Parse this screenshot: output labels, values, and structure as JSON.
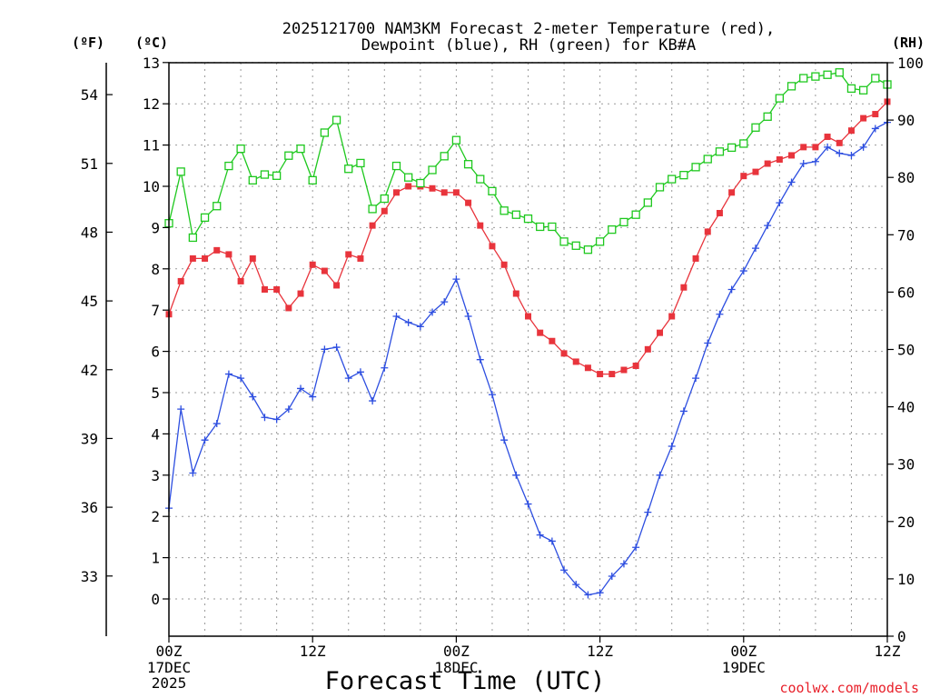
{
  "chart_data": {
    "type": "line",
    "title_line1": "2025121700 NAM3KM Forecast 2-meter Temperature (red),",
    "title_line2": "Dewpoint (blue), RH (green) for KB#A",
    "xlabel": "Forecast Time (UTC)",
    "credit": "coolwx.com/models",
    "unit_left_f": "(ºF)",
    "unit_left_c": "(ºC)",
    "unit_right": "(RH)",
    "x_range_hours": [
      0,
      60
    ],
    "ylim_c": [
      -0.9,
      13
    ],
    "ylim_rh": [
      0,
      100
    ],
    "x_ticks": [
      {
        "hour": 0,
        "line1": "00Z",
        "line2": "17DEC",
        "line3": "2025"
      },
      {
        "hour": 12,
        "line1": "12Z",
        "line2": "",
        "line3": ""
      },
      {
        "hour": 24,
        "line1": "00Z",
        "line2": "18DEC",
        "line3": ""
      },
      {
        "hour": 36,
        "line1": "12Z",
        "line2": "",
        "line3": ""
      },
      {
        "hour": 48,
        "line1": "00Z",
        "line2": "19DEC",
        "line3": ""
      },
      {
        "hour": 60,
        "line1": "12Z",
        "line2": "",
        "line3": ""
      }
    ],
    "y_ticks_c": [
      "0",
      "1",
      "2",
      "3",
      "4",
      "5",
      "6",
      "7",
      "8",
      "9",
      "10",
      "11",
      "12",
      "13"
    ],
    "y_ticks_f": [
      "33",
      "36",
      "39",
      "42",
      "45",
      "48",
      "51",
      "54"
    ],
    "y_ticks_rh": [
      "0",
      "10",
      "20",
      "30",
      "40",
      "50",
      "60",
      "70",
      "80",
      "90",
      "100"
    ],
    "series": [
      {
        "name": "Temperature",
        "color": "#e8343c",
        "axis": "c",
        "values": [
          6.9,
          7.7,
          8.25,
          8.25,
          8.45,
          8.35,
          7.7,
          8.25,
          7.5,
          7.5,
          7.05,
          7.4,
          8.1,
          7.95,
          7.6,
          8.35,
          8.25,
          9.05,
          9.4,
          9.85,
          10.0,
          10.0,
          9.95,
          9.85,
          9.85,
          9.6,
          9.05,
          8.55,
          8.1,
          7.4,
          6.85,
          6.45,
          6.25,
          5.95,
          5.75,
          5.6,
          5.45,
          5.45,
          5.55,
          5.65,
          6.05,
          6.45,
          6.85,
          7.55,
          8.25,
          8.9,
          9.35,
          9.85,
          10.25,
          10.35,
          10.55,
          10.65,
          10.75,
          10.95,
          10.95,
          11.2,
          11.05,
          11.35,
          11.65,
          11.75,
          12.05
        ]
      },
      {
        "name": "Dewpoint",
        "color": "#2d4ee0",
        "axis": "c",
        "values": [
          2.2,
          4.6,
          3.05,
          3.85,
          4.25,
          5.45,
          5.35,
          4.9,
          4.4,
          4.35,
          4.6,
          5.1,
          4.9,
          6.05,
          6.1,
          5.35,
          5.5,
          4.8,
          5.6,
          6.85,
          6.7,
          6.6,
          6.95,
          7.2,
          7.75,
          6.85,
          5.8,
          4.95,
          3.85,
          3.0,
          2.3,
          1.55,
          1.4,
          0.7,
          0.35,
          0.1,
          0.15,
          0.55,
          0.85,
          1.25,
          2.1,
          3.0,
          3.7,
          4.55,
          5.35,
          6.2,
          6.9,
          7.5,
          7.95,
          8.5,
          9.05,
          9.6,
          10.1,
          10.55,
          10.6,
          10.95,
          10.8,
          10.75,
          10.95,
          11.4,
          11.55
        ]
      },
      {
        "name": "RH",
        "color": "#1ec81e",
        "axis": "rh",
        "values": [
          72,
          81,
          69.5,
          73,
          75,
          82,
          85,
          79.5,
          80.5,
          80.3,
          83.8,
          85,
          79.5,
          87.8,
          90,
          81.5,
          82.5,
          74.5,
          76.3,
          82,
          80,
          79,
          81.3,
          83.7,
          86.5,
          82.3,
          79.7,
          77.6,
          74.2,
          73.5,
          72.8,
          71.4,
          71.4,
          68.8,
          68.1,
          67.4,
          68.8,
          70.9,
          72.2,
          73.5,
          75.6,
          78.3,
          79.7,
          80.4,
          81.8,
          83.2,
          84.5,
          85.2,
          85.9,
          88.7,
          90.6,
          93.8,
          95.9,
          97.3,
          97.6,
          97.9,
          98.3,
          95.5,
          95.2,
          97.3,
          96.2
        ]
      }
    ]
  }
}
